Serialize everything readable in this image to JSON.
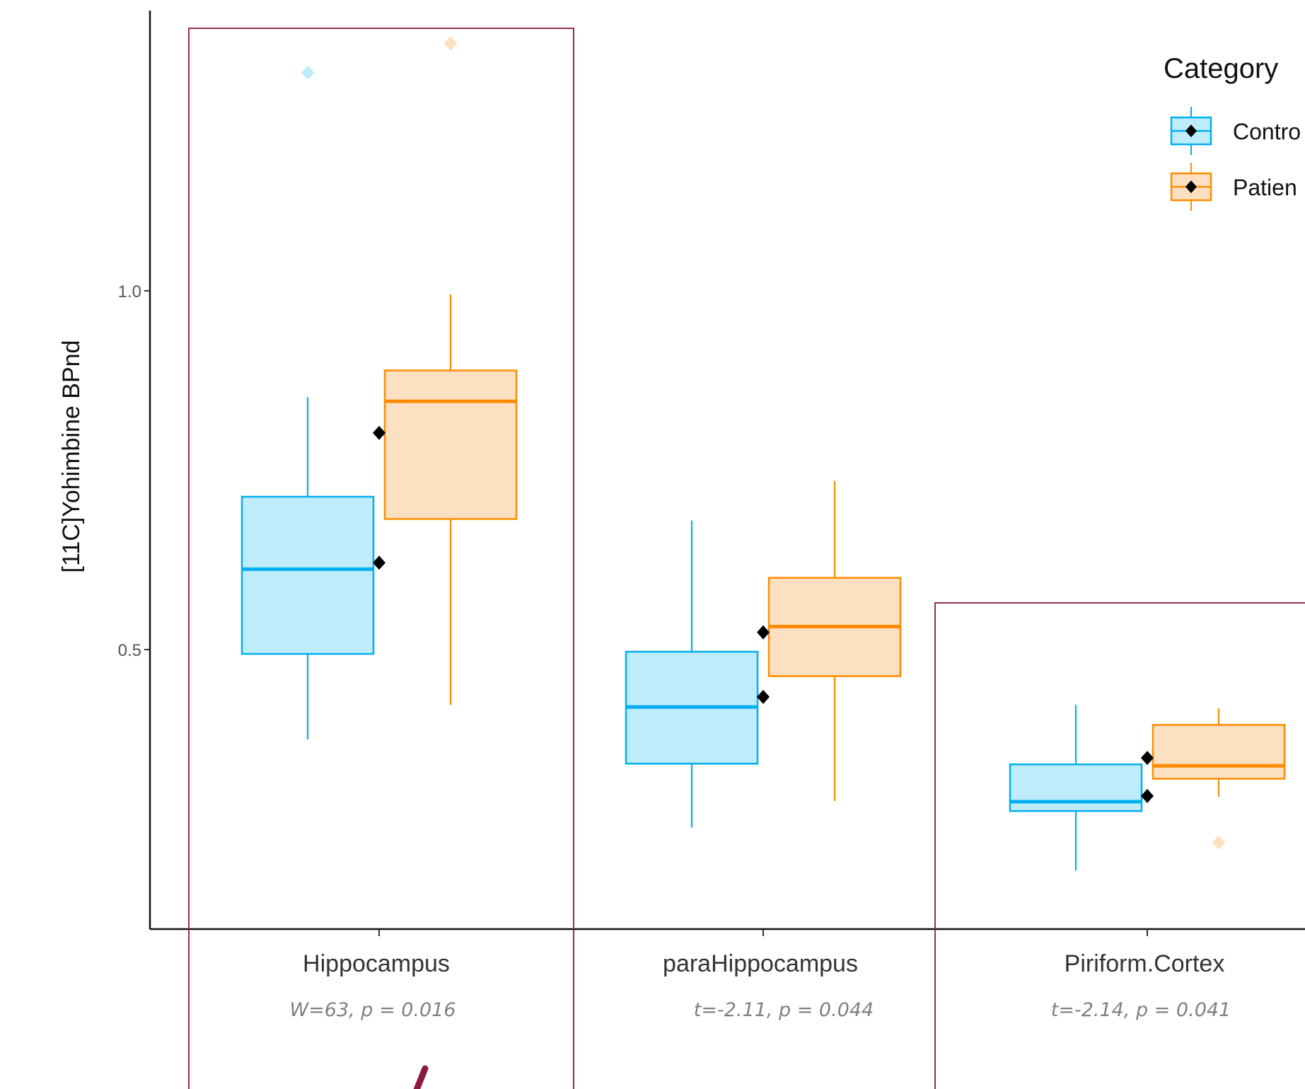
{
  "chart_data": {
    "type": "box",
    "ylabel": "[11C]Yohimbine BPnd",
    "yticks": [
      0.5,
      1.0
    ],
    "ytick_labels": [
      "0.5",
      "1.0"
    ],
    "ylim": [
      0.13,
      1.405
    ],
    "categories": [
      "Hippocampus",
      "paraHippocampus",
      "Piriform.Cortex"
    ],
    "annotations": [
      "W=63, p = 0.016",
      "t=-2.11, p = 0.044",
      "t=-2.14, p = 0.041"
    ],
    "legend": {
      "title": "Category",
      "entries": [
        "Contro",
        "Patien"
      ],
      "position": "top-right"
    },
    "series": [
      {
        "name": "Control",
        "color": "#00B0F0",
        "fill": "#BFECFA",
        "boxes": [
          {
            "lower_whisker": 0.375,
            "q1": 0.494,
            "median": 0.612,
            "q3": 0.713,
            "upper_whisker": 0.852,
            "outliers": [
              1.304
            ]
          },
          {
            "lower_whisker": 0.252,
            "q1": 0.341,
            "median": 0.42,
            "q3": 0.497,
            "upper_whisker": 0.68,
            "outliers": []
          },
          {
            "lower_whisker": 0.192,
            "q1": 0.275,
            "median": 0.288,
            "q3": 0.34,
            "upper_whisker": 0.423,
            "outliers": []
          }
        ],
        "mean_markers": [
          0.621,
          0.434,
          0.296
        ]
      },
      {
        "name": "Patient",
        "color": "#FF8C00",
        "fill": "#FDE0C2",
        "boxes": [
          {
            "lower_whisker": 0.423,
            "q1": 0.682,
            "median": 0.846,
            "q3": 0.889,
            "upper_whisker": 0.995,
            "outliers": [
              1.345
            ]
          },
          {
            "lower_whisker": 0.289,
            "q1": 0.463,
            "median": 0.532,
            "q3": 0.6,
            "upper_whisker": 0.735,
            "outliers": []
          },
          {
            "lower_whisker": 0.295,
            "q1": 0.32,
            "median": 0.338,
            "q3": 0.395,
            "upper_whisker": 0.418,
            "outliers": [
              0.231
            ]
          }
        ],
        "mean_markers": [
          0.802,
          0.524,
          0.349
        ]
      }
    ],
    "highlight_color": "#8B1A3A"
  }
}
